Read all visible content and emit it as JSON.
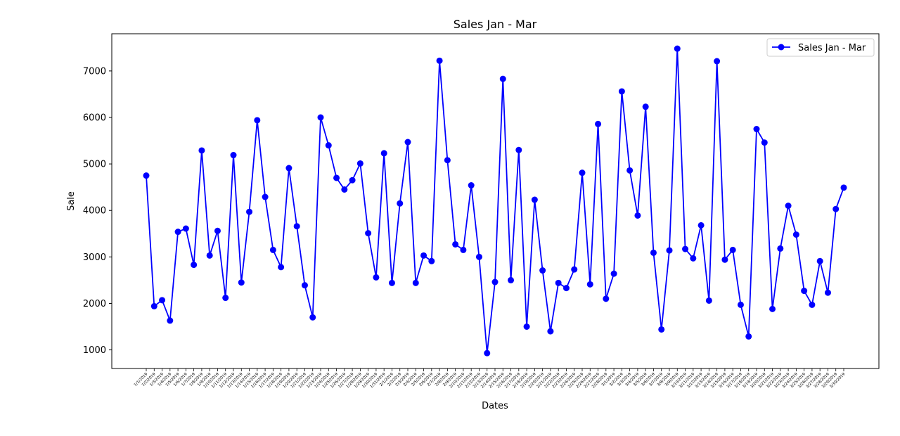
{
  "chart_data": {
    "type": "line",
    "title": "Sales Jan - Mar",
    "xlabel": "Dates",
    "ylabel": "Sale",
    "ylim": [
      600,
      7800
    ],
    "yticks": [
      1000,
      2000,
      3000,
      4000,
      5000,
      6000,
      7000
    ],
    "legend": "top-right",
    "grid": false,
    "series_color": "#0000ff",
    "categories": [
      "1/1/2019",
      "1/2/2019",
      "1/3/2019",
      "1/4/2019",
      "1/5/2019",
      "1/6/2019",
      "1/7/2019",
      "1/8/2019",
      "1/9/2019",
      "1/10/2019",
      "1/11/2019",
      "1/12/2019",
      "1/13/2019",
      "1/14/2019",
      "1/15/2019",
      "1/16/2019",
      "1/17/2019",
      "1/18/2019",
      "1/19/2019",
      "1/20/2019",
      "1/21/2019",
      "1/22/2019",
      "1/23/2019",
      "1/24/2019",
      "1/25/2019",
      "1/26/2019",
      "1/27/2019",
      "1/28/2019",
      "1/29/2019",
      "1/30/2019",
      "1/31/2019",
      "2/1/2019",
      "2/2/2019",
      "2/3/2019",
      "2/4/2019",
      "2/5/2019",
      "2/6/2019",
      "2/7/2019",
      "2/8/2019",
      "2/9/2019",
      "2/10/2019",
      "2/11/2019",
      "2/12/2019",
      "2/13/2019",
      "2/14/2019",
      "2/15/2019",
      "2/16/2019",
      "2/17/2019",
      "2/18/2019",
      "2/19/2019",
      "2/20/2019",
      "2/21/2019",
      "2/22/2019",
      "2/23/2019",
      "2/24/2019",
      "2/25/2019",
      "2/26/2019",
      "2/27/2019",
      "2/28/2019",
      "3/1/2019",
      "3/2/2019",
      "3/3/2019",
      "3/4/2019",
      "3/5/2019",
      "3/6/2019",
      "3/7/2019",
      "3/8/2019",
      "3/9/2019",
      "3/10/2019",
      "3/11/2019",
      "3/12/2019",
      "3/13/2019",
      "3/14/2019",
      "3/15/2019",
      "3/16/2019",
      "3/17/2019",
      "3/18/2019",
      "3/19/2019",
      "3/20/2019",
      "3/21/2019",
      "3/22/2019",
      "3/23/2019",
      "3/24/2019",
      "3/25/2019",
      "3/26/2019",
      "3/27/2019",
      "3/28/2019",
      "3/29/2019",
      "3/30/2019"
    ],
    "series": [
      {
        "name": "Sales Jan - Mar",
        "values": [
          4750,
          1940,
          2070,
          1630,
          3540,
          3610,
          2830,
          5290,
          3030,
          3560,
          2120,
          5190,
          2450,
          3970,
          5940,
          4290,
          3150,
          2780,
          4910,
          3660,
          2390,
          1700,
          6000,
          5400,
          4700,
          4450,
          4650,
          5010,
          3510,
          2560,
          5230,
          2440,
          4150,
          5470,
          2440,
          3030,
          2910,
          7220,
          5080,
          3270,
          3150,
          4540,
          3000,
          930,
          2460,
          6830,
          2500,
          5300,
          1500,
          4230,
          2710,
          1400,
          2440,
          2330,
          2730,
          4810,
          2410,
          5860,
          2100,
          2640,
          6560,
          4860,
          3890,
          6230,
          3090,
          1440,
          3140,
          7480,
          3170,
          2970,
          3680,
          2060,
          7210,
          2940,
          3150,
          1970,
          1290,
          5750,
          5460,
          1880,
          3180,
          4100,
          3480,
          2270,
          1970,
          2910,
          2230,
          4030,
          4490
        ]
      }
    ]
  }
}
